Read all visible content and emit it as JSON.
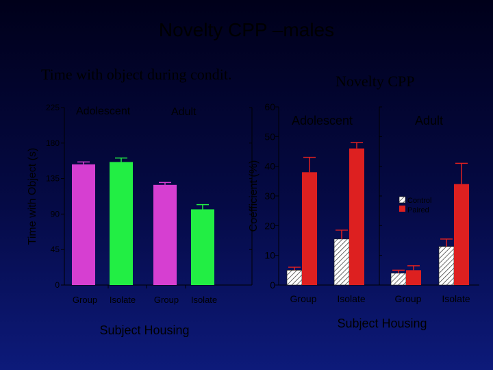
{
  "slide": {
    "title": "Novelty CPP –males"
  },
  "chart_data": [
    {
      "type": "bar",
      "title": "Time with object during condit.",
      "ylabel": "Time with Object (s)",
      "xlabel": "Subject Housing",
      "ylim": [
        0,
        225
      ],
      "yticks": [
        0,
        45,
        90,
        135,
        180,
        225
      ],
      "groups": [
        "Adolescent",
        "Adult"
      ],
      "categories": [
        "Group",
        "Isolate",
        "Group",
        "Isolate"
      ],
      "values": [
        153,
        156,
        127,
        96
      ],
      "errors": [
        3,
        5,
        3,
        6
      ],
      "colors": [
        "#d63fd1",
        "#22ee44",
        "#d63fd1",
        "#22ee44"
      ],
      "grid": false
    },
    {
      "type": "bar",
      "title": "Novelty CPP",
      "ylabel": "Coefficient (%)",
      "xlabel": "Subject Housing",
      "ylim": [
        0,
        60
      ],
      "yticks": [
        0,
        10,
        20,
        30,
        40,
        50,
        60
      ],
      "groups": [
        "Adolescent",
        "Adult"
      ],
      "categories": [
        "Group",
        "Isolate",
        "Group",
        "Isolate"
      ],
      "series": [
        {
          "name": "Control",
          "pattern": "hatched",
          "values": [
            5,
            15.5,
            4,
            13
          ],
          "errors": [
            1,
            3,
            1,
            2.5
          ]
        },
        {
          "name": "Paired",
          "color": "#dd2020",
          "values": [
            38,
            46,
            5,
            34
          ],
          "errors": [
            5,
            2,
            1.5,
            7
          ]
        }
      ],
      "legend": {
        "position": "right",
        "entries": [
          "Control",
          "Paired"
        ]
      },
      "grid": false
    }
  ]
}
